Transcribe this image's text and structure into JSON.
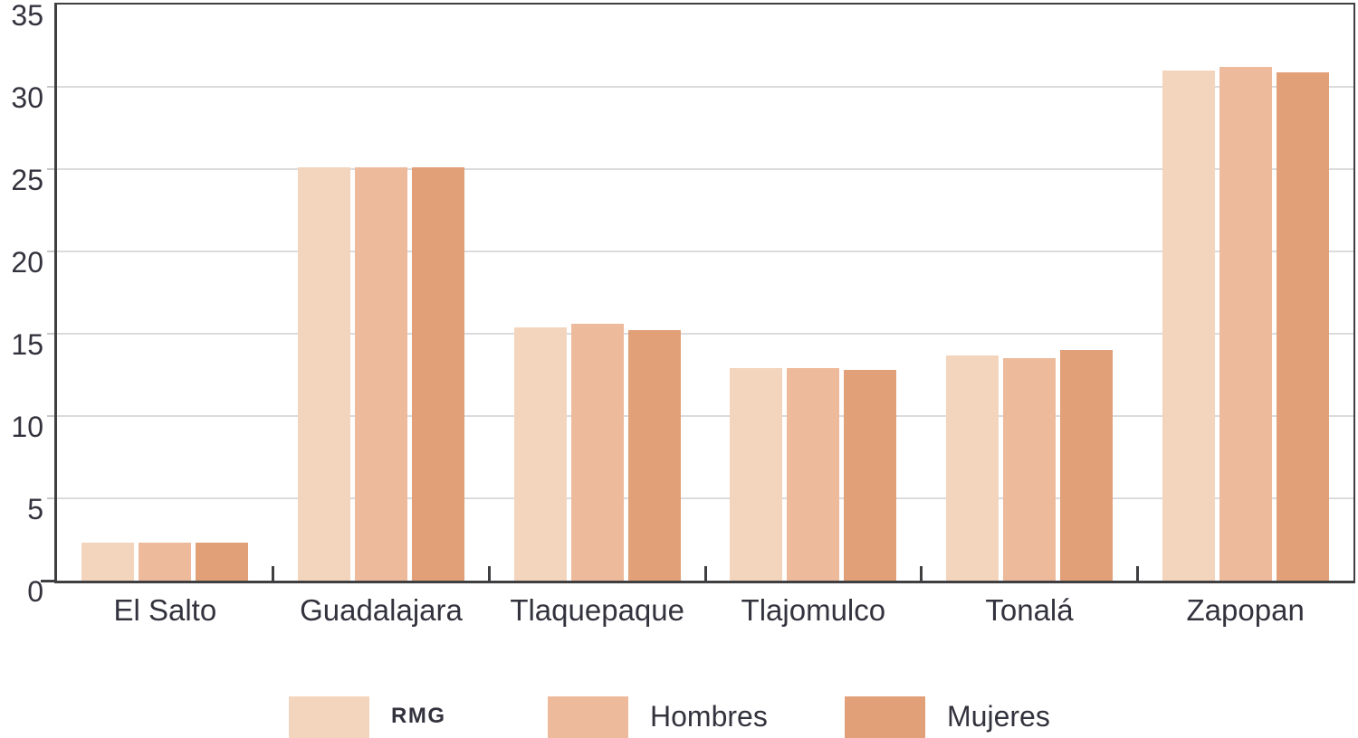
{
  "chart_data": {
    "type": "bar",
    "title": "",
    "categories": [
      "El Salto",
      "Guadalajara",
      "Tlaquepaque",
      "Tlajomulco",
      "Tonalá",
      "Zapopan"
    ],
    "series": [
      {
        "name": "RMG",
        "color": "#f3d5bd",
        "values": [
          2.3,
          25.1,
          15.4,
          12.9,
          13.7,
          31.0
        ]
      },
      {
        "name": "Hombres",
        "color": "#eeba9c",
        "values": [
          2.3,
          25.1,
          15.6,
          12.9,
          13.5,
          31.2
        ]
      },
      {
        "name": "Mujeres",
        "color": "#e1a078",
        "values": [
          2.3,
          25.1,
          15.2,
          12.8,
          14.0,
          30.9
        ]
      }
    ],
    "y_ticks": [
      0,
      5,
      10,
      15,
      20,
      25,
      30,
      35
    ],
    "ylim": [
      0,
      35
    ],
    "xlabel": "",
    "ylabel": "",
    "grid": true,
    "legend_position": "bottom",
    "colors": {
      "axis": "#3f3f42",
      "gridline": "#dbdbdb",
      "text": "#33333e",
      "background": "#ffffff"
    }
  }
}
